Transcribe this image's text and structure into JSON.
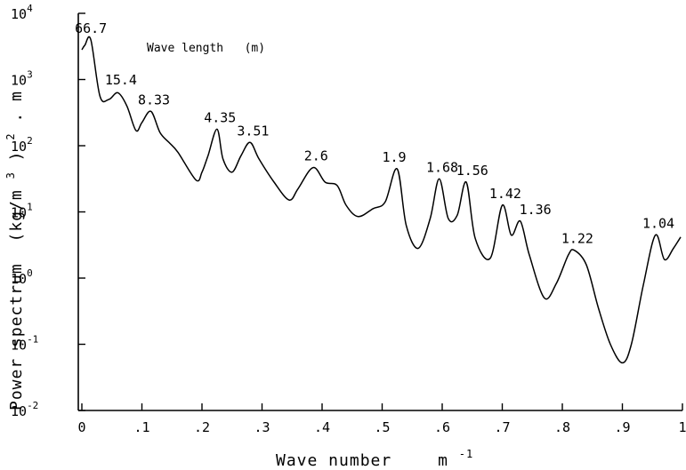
{
  "chart_data": {
    "type": "line",
    "xlabel": "Wave number",
    "xlabel_unit": "m",
    "xlabel_unit_exp": "-1",
    "ylabel": "Power spectrum",
    "ylabel_unit": "(kg/m",
    "ylabel_unit_exp": "3",
    "ylabel_unit_rest": ")",
    "ylabel_unit_exp2": "2",
    "ylabel_unit_tail": ". m",
    "annotation": "Wave length   (m)",
    "xlim": [
      0,
      1
    ],
    "ylim_log10": [
      -2,
      4
    ],
    "y_scale": "log",
    "grid": false,
    "x_ticks": [
      {
        "value": 0,
        "label": "0"
      },
      {
        "value": 0.1,
        "label": ".1"
      },
      {
        "value": 0.2,
        "label": ".2"
      },
      {
        "value": 0.3,
        "label": ".3"
      },
      {
        "value": 0.4,
        "label": ".4"
      },
      {
        "value": 0.5,
        "label": ".5"
      },
      {
        "value": 0.6,
        "label": ".6"
      },
      {
        "value": 0.7,
        "label": ".7"
      },
      {
        "value": 0.8,
        "label": ".8"
      },
      {
        "value": 0.9,
        "label": ".9"
      },
      {
        "value": 1,
        "label": "1"
      }
    ],
    "y_ticks": [
      {
        "exp": 4,
        "base": "10",
        "sup": "4"
      },
      {
        "exp": 3,
        "base": "10",
        "sup": "3"
      },
      {
        "exp": 2,
        "base": "10",
        "sup": "2"
      },
      {
        "exp": 1,
        "base": "10",
        "sup": "1"
      },
      {
        "exp": 0,
        "base": "10",
        "sup": "0"
      },
      {
        "exp": -1,
        "base": "10",
        "sup": "-1"
      },
      {
        "exp": -2,
        "base": "10",
        "sup": "-2"
      }
    ],
    "x": [
      0,
      0.005,
      0.015,
      0.03,
      0.045,
      0.06,
      0.075,
      0.09,
      0.1,
      0.115,
      0.13,
      0.145,
      0.16,
      0.19,
      0.2,
      0.21,
      0.225,
      0.235,
      0.25,
      0.265,
      0.28,
      0.295,
      0.32,
      0.345,
      0.36,
      0.385,
      0.405,
      0.425,
      0.44,
      0.46,
      0.485,
      0.505,
      0.525,
      0.54,
      0.56,
      0.58,
      0.595,
      0.61,
      0.625,
      0.64,
      0.655,
      0.68,
      0.7,
      0.715,
      0.73,
      0.745,
      0.77,
      0.79,
      0.81,
      0.82,
      0.84,
      0.86,
      0.88,
      0.9,
      0.915,
      0.935,
      0.955,
      0.97,
      0.985,
      0.997
    ],
    "log10_values": [
      3.45,
      3.52,
      3.6,
      2.75,
      2.7,
      2.8,
      2.6,
      2.23,
      2.35,
      2.52,
      2.2,
      2.05,
      1.9,
      1.48,
      1.6,
      1.85,
      2.25,
      1.8,
      1.6,
      1.85,
      2.05,
      1.8,
      1.45,
      1.18,
      1.35,
      1.67,
      1.45,
      1.4,
      1.1,
      0.93,
      1.05,
      1.15,
      1.65,
      0.8,
      0.45,
      0.9,
      1.5,
      0.9,
      0.95,
      1.45,
      0.6,
      0.3,
      1.1,
      0.65,
      0.86,
      0.35,
      -0.3,
      -0.08,
      0.35,
      0.42,
      0.2,
      -0.45,
      -1.0,
      -1.28,
      -1.0,
      -0.1,
      0.65,
      0.28,
      0.45,
      0.62
    ],
    "peak_labels": [
      {
        "text": "66.7",
        "x": 0.015,
        "log10": 3.6
      },
      {
        "text": "15.4",
        "x": 0.065,
        "log10": 2.82
      },
      {
        "text": "8.33",
        "x": 0.12,
        "log10": 2.52
      },
      {
        "text": "4.35",
        "x": 0.23,
        "log10": 2.25
      },
      {
        "text": "3.51",
        "x": 0.285,
        "log10": 2.05
      },
      {
        "text": "2.6",
        "x": 0.39,
        "log10": 1.67
      },
      {
        "text": "1.9",
        "x": 0.52,
        "log10": 1.65
      },
      {
        "text": "1.68",
        "x": 0.6,
        "log10": 1.5
      },
      {
        "text": "1.56",
        "x": 0.65,
        "log10": 1.45
      },
      {
        "text": "1.42",
        "x": 0.705,
        "log10": 1.1
      },
      {
        "text": "1.36",
        "x": 0.755,
        "log10": 0.86
      },
      {
        "text": "1.22",
        "x": 0.825,
        "log10": 0.42
      },
      {
        "text": "1.04",
        "x": 0.96,
        "log10": 0.65
      }
    ]
  }
}
